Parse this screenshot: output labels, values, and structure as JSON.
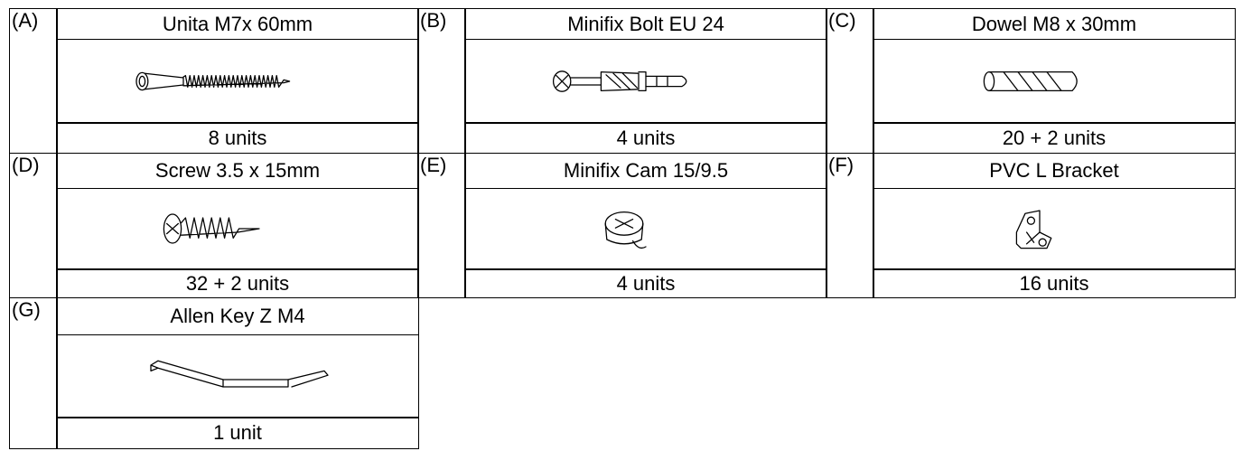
{
  "parts": [
    {
      "letter": "(A)",
      "name": "Unita M7x 60mm",
      "quantity": "8 units"
    },
    {
      "letter": "(B)",
      "name": "Minifix Bolt EU 24",
      "quantity": "4 units"
    },
    {
      "letter": "(C)",
      "name": "Dowel M8 x 30mm",
      "quantity": "20 + 2 units"
    },
    {
      "letter": "(D)",
      "name": "Screw 3.5 x 15mm",
      "quantity": "32 + 2 units"
    },
    {
      "letter": "(E)",
      "name": "Minifix Cam 15/9.5",
      "quantity": "4 units"
    },
    {
      "letter": "(F)",
      "name": "PVC L Bracket",
      "quantity": "16 units"
    },
    {
      "letter": "(G)",
      "name": "Allen Key Z M4",
      "quantity": "1 unit"
    }
  ]
}
